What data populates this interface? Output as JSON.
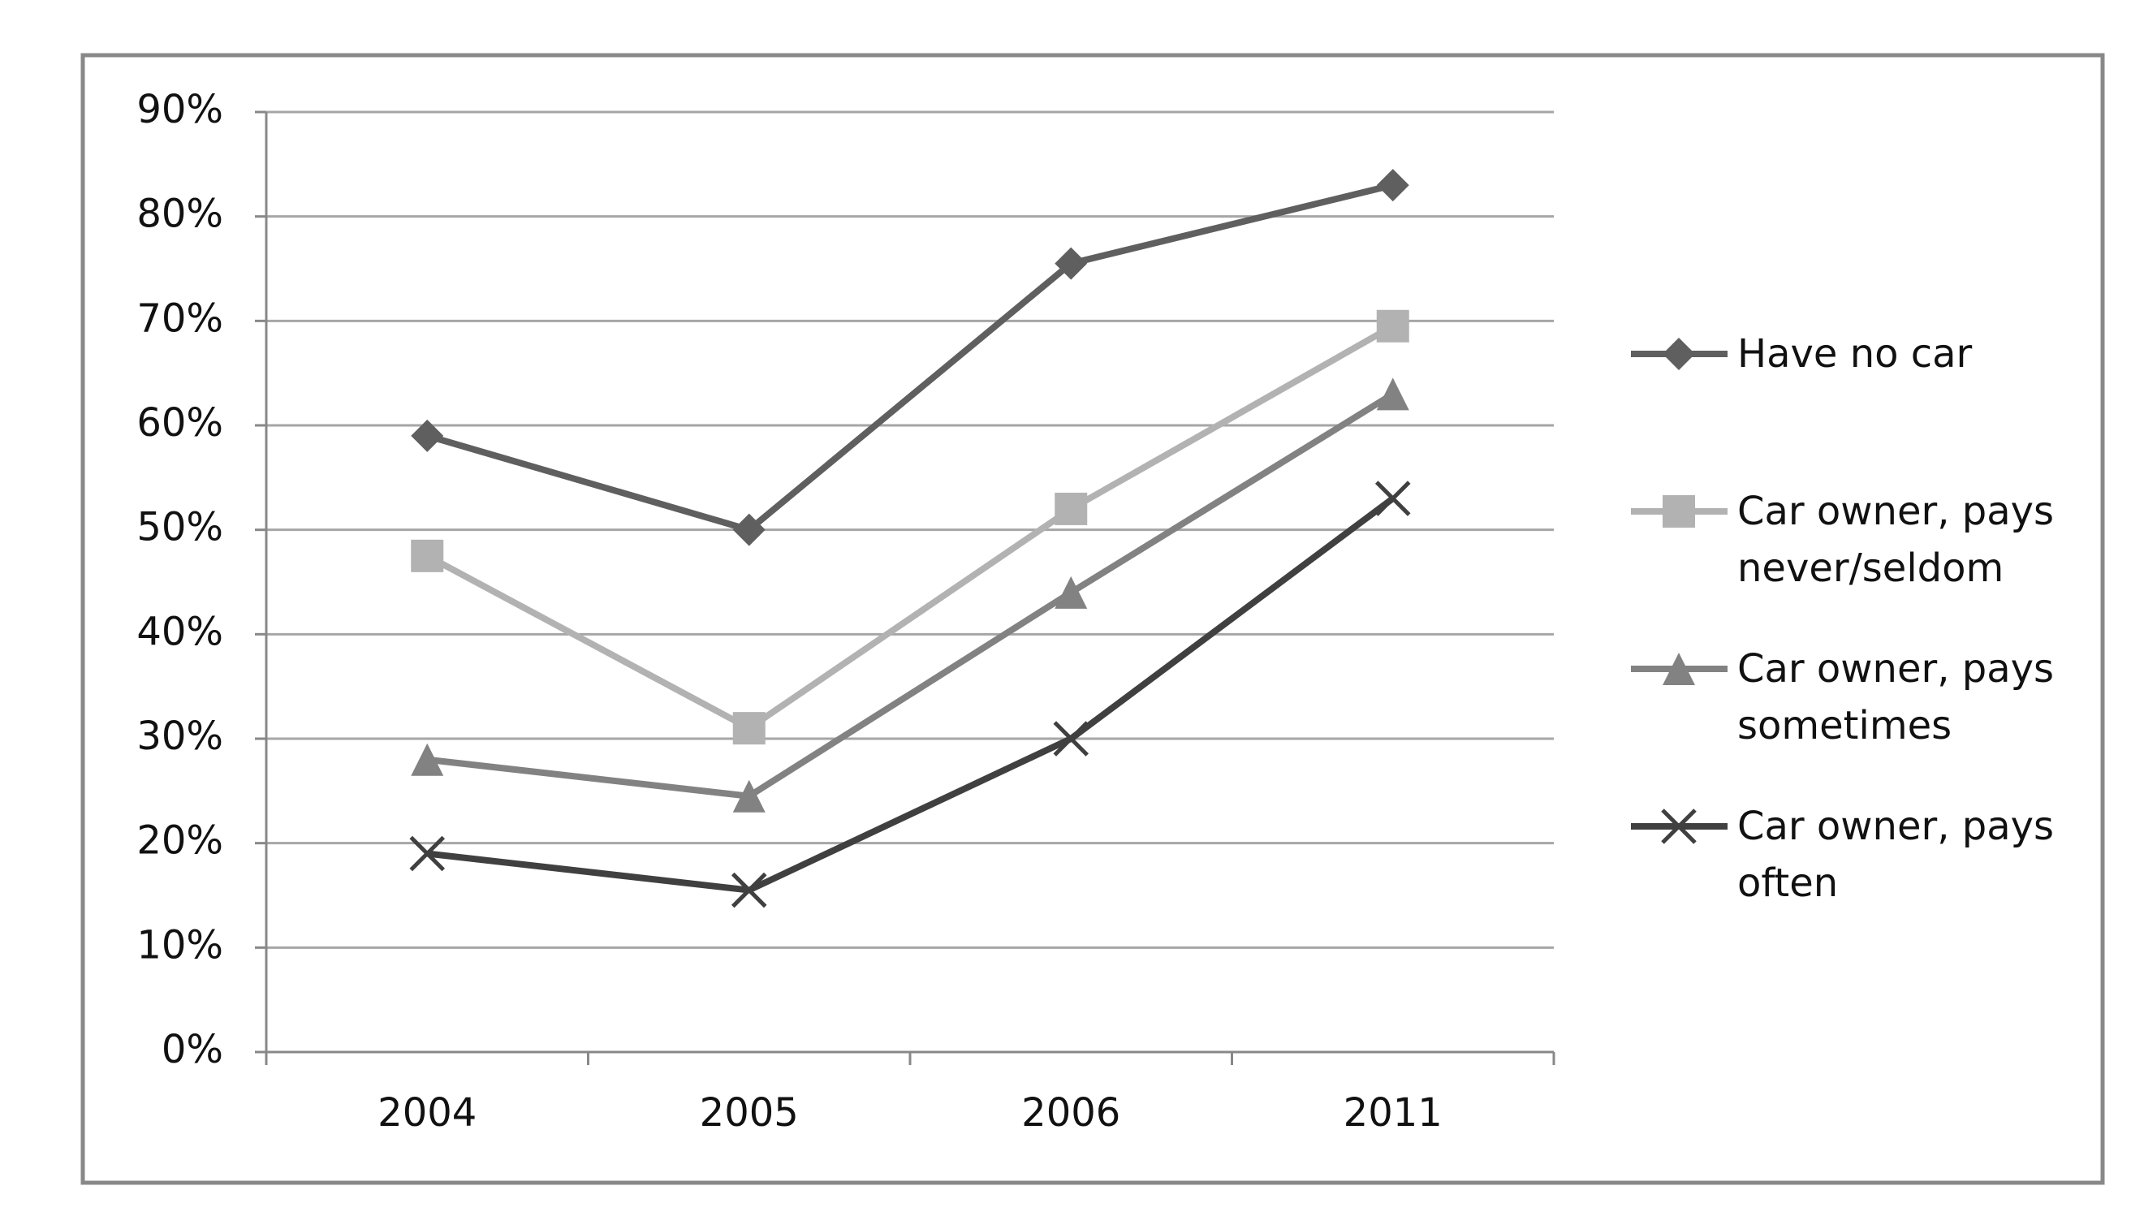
{
  "chart_data": {
    "type": "line",
    "categories": [
      "2004",
      "2005",
      "2006",
      "2011"
    ],
    "series": [
      {
        "name": "Have no car",
        "color": "#5f5f5f",
        "marker": "diamond",
        "values": [
          59,
          50,
          75.5,
          83
        ]
      },
      {
        "name": "Car owner, pays never/seldom",
        "color": "#b2b2b2",
        "marker": "square",
        "values": [
          47.5,
          31,
          52,
          69.5
        ]
      },
      {
        "name": "Car owner, pays sometimes",
        "color": "#828282",
        "marker": "triangle",
        "values": [
          28,
          24.5,
          44,
          63
        ]
      },
      {
        "name": "Car owner, pays often",
        "color": "#404040",
        "marker": "x",
        "values": [
          19,
          15.5,
          30,
          53
        ]
      }
    ],
    "ylim": [
      0,
      90
    ],
    "yticks": [
      {
        "value": 0,
        "label": "0%"
      },
      {
        "value": 10,
        "label": "10%"
      },
      {
        "value": 20,
        "label": "20%"
      },
      {
        "value": 30,
        "label": "30%"
      },
      {
        "value": 40,
        "label": "40%"
      },
      {
        "value": 50,
        "label": "50%"
      },
      {
        "value": 60,
        "label": "60%"
      },
      {
        "value": 70,
        "label": "70%"
      },
      {
        "value": 80,
        "label": "80%"
      },
      {
        "value": 90,
        "label": "90%"
      }
    ],
    "grid": true,
    "legend": "right"
  }
}
